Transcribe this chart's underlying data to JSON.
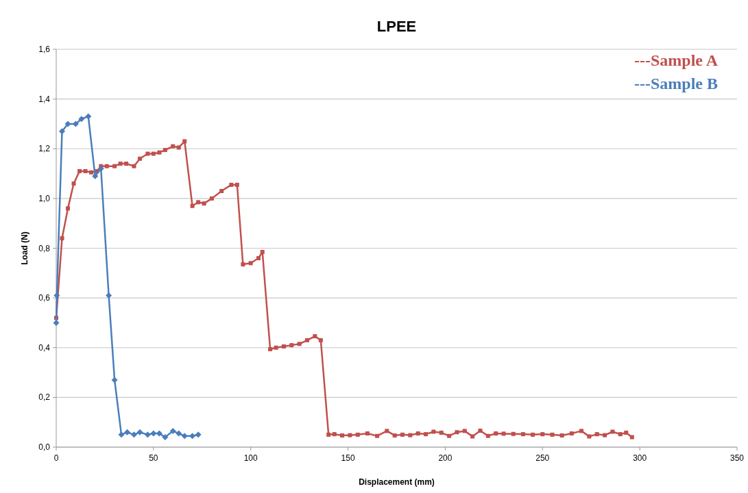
{
  "chart_data": {
    "type": "line",
    "title": "LPEE",
    "xlabel": "Displacement (mm)",
    "ylabel": "Load (N)",
    "xlim": [
      0,
      350
    ],
    "xticks": [
      0,
      50,
      100,
      150,
      200,
      250,
      300,
      350
    ],
    "ylim": [
      0,
      1.6
    ],
    "yticks": [
      {
        "value": 0,
        "label": "0,0"
      },
      {
        "value": 0.2,
        "label": "0,2"
      },
      {
        "value": 0.4,
        "label": "0,4"
      },
      {
        "value": 0.6,
        "label": "0,6"
      },
      {
        "value": 0.8,
        "label": "0,8"
      },
      {
        "value": 1.0,
        "label": "1,0"
      },
      {
        "value": 1.2,
        "label": "1,2"
      },
      {
        "value": 1.4,
        "label": "1,4"
      },
      {
        "value": 1.6,
        "label": "1,6"
      }
    ],
    "grid": "y",
    "legend": "top right",
    "line_style": "solid",
    "series": [
      {
        "name": "---Sample A",
        "color": "#c0504d",
        "marker": "square",
        "x": [
          0,
          3,
          6,
          9,
          12,
          15,
          18,
          21,
          23,
          26,
          30,
          33,
          36,
          40,
          43,
          47,
          50,
          53,
          56,
          60,
          63,
          66,
          70,
          73,
          76,
          80,
          85,
          90,
          93,
          96,
          100,
          104,
          106,
          110,
          113,
          117,
          121,
          125,
          129,
          133,
          136,
          140,
          143,
          147,
          151,
          155,
          160,
          165,
          170,
          174,
          178,
          182,
          186,
          190,
          194,
          198,
          202,
          206,
          210,
          214,
          218,
          222,
          226,
          230,
          235,
          240,
          245,
          250,
          255,
          260,
          265,
          270,
          274,
          278,
          282,
          286,
          290,
          293,
          296
        ],
        "values": [
          0.52,
          0.84,
          0.96,
          1.06,
          1.11,
          1.11,
          1.105,
          1.11,
          1.13,
          1.13,
          1.13,
          1.14,
          1.14,
          1.13,
          1.16,
          1.18,
          1.18,
          1.185,
          1.195,
          1.21,
          1.205,
          1.23,
          0.97,
          0.985,
          0.98,
          1.0,
          1.03,
          1.055,
          1.055,
          0.735,
          0.74,
          0.76,
          0.785,
          0.394,
          0.4,
          0.405,
          0.41,
          0.415,
          0.43,
          0.446,
          0.43,
          0.05,
          0.052,
          0.047,
          0.048,
          0.05,
          0.055,
          0.045,
          0.065,
          0.047,
          0.05,
          0.048,
          0.055,
          0.052,
          0.062,
          0.058,
          0.045,
          0.06,
          0.065,
          0.043,
          0.066,
          0.045,
          0.055,
          0.054,
          0.053,
          0.052,
          0.05,
          0.052,
          0.05,
          0.047,
          0.055,
          0.065,
          0.043,
          0.052,
          0.048,
          0.062,
          0.052,
          0.058,
          0.04
        ]
      },
      {
        "name": "---Sample B",
        "color": "#4a7ebb",
        "marker": "diamond",
        "x": [
          0,
          0.3,
          3,
          6,
          10,
          13,
          16.5,
          20,
          23,
          27,
          30,
          33.5,
          36.5,
          40,
          43,
          47,
          50,
          53,
          56,
          60,
          63,
          66,
          70,
          73
        ],
        "values": [
          0.5,
          0.61,
          1.27,
          1.3,
          1.3,
          1.32,
          1.33,
          1.09,
          1.12,
          0.61,
          0.27,
          0.05,
          0.06,
          0.05,
          0.06,
          0.05,
          0.055,
          0.055,
          0.04,
          0.065,
          0.055,
          0.045,
          0.045,
          0.05
        ]
      }
    ]
  }
}
